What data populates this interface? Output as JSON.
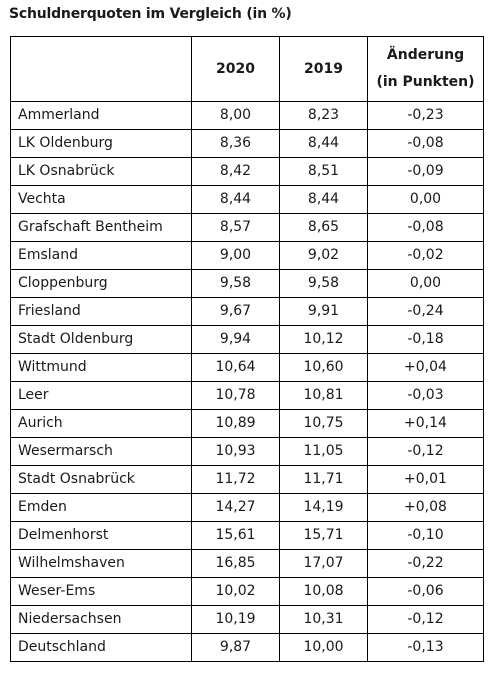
{
  "title": "Schuldnerquoten im Vergleich (in %)",
  "table": {
    "headers": {
      "region": "",
      "y2020": "2020",
      "y2019": "2019",
      "change_line1": "Änderung",
      "change_line2": "(in Punkten)"
    },
    "rows": [
      {
        "region": "Ammerland",
        "y2020": "8,00",
        "y2019": "8,23",
        "change": "-0,23"
      },
      {
        "region": "LK Oldenburg",
        "y2020": "8,36",
        "y2019": "8,44",
        "change": "-0,08"
      },
      {
        "region": "LK Osnabrück",
        "y2020": "8,42",
        "y2019": "8,51",
        "change": "-0,09"
      },
      {
        "region": "Vechta",
        "y2020": "8,44",
        "y2019": "8,44",
        "change": "0,00"
      },
      {
        "region": "Grafschaft Bentheim",
        "y2020": "8,57",
        "y2019": "8,65",
        "change": "-0,08"
      },
      {
        "region": "Emsland",
        "y2020": "9,00",
        "y2019": "9,02",
        "change": "-0,02"
      },
      {
        "region": "Cloppenburg",
        "y2020": "9,58",
        "y2019": "9,58",
        "change": "0,00"
      },
      {
        "region": "Friesland",
        "y2020": "9,67",
        "y2019": "9,91",
        "change": "-0,24"
      },
      {
        "region": "Stadt Oldenburg",
        "y2020": "9,94",
        "y2019": "10,12",
        "change": "-0,18"
      },
      {
        "region": "Wittmund",
        "y2020": "10,64",
        "y2019": "10,60",
        "change": "+0,04"
      },
      {
        "region": "Leer",
        "y2020": "10,78",
        "y2019": "10,81",
        "change": "-0,03"
      },
      {
        "region": "Aurich",
        "y2020": "10,89",
        "y2019": "10,75",
        "change": "+0,14"
      },
      {
        "region": "Wesermarsch",
        "y2020": "10,93",
        "y2019": "11,05",
        "change": "-0,12"
      },
      {
        "region": "Stadt Osnabrück",
        "y2020": "11,72",
        "y2019": "11,71",
        "change": "+0,01"
      },
      {
        "region": "Emden",
        "y2020": "14,27",
        "y2019": "14,19",
        "change": "+0,08"
      },
      {
        "region": "Delmenhorst",
        "y2020": "15,61",
        "y2019": "15,71",
        "change": "-0,10"
      },
      {
        "region": "Wilhelmshaven",
        "y2020": "16,85",
        "y2019": "17,07",
        "change": "-0,22"
      },
      {
        "region": "Weser-Ems",
        "y2020": "10,02",
        "y2019": "10,08",
        "change": "-0,06"
      },
      {
        "region": "Niedersachsen",
        "y2020": "10,19",
        "y2019": "10,31",
        "change": "-0,12"
      },
      {
        "region": "Deutschland",
        "y2020": "9,87",
        "y2019": "10,00",
        "change": "-0,13"
      }
    ]
  }
}
